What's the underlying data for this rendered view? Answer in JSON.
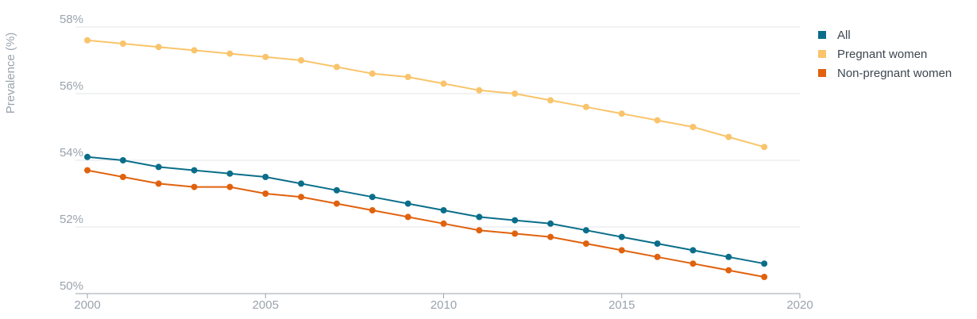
{
  "chart_data": {
    "type": "line",
    "ylabel": "Prevalence (%)",
    "xlabel": "",
    "xlim": [
      2000,
      2020
    ],
    "ylim": [
      50,
      58
    ],
    "x_ticks": [
      "2000",
      "2005",
      "2010",
      "2015",
      "2020"
    ],
    "y_ticks": [
      "50%",
      "52%",
      "54%",
      "56%",
      "58%"
    ],
    "grid": true,
    "legend_position": "top-right",
    "x": [
      2000,
      2001,
      2002,
      2003,
      2004,
      2005,
      2006,
      2007,
      2008,
      2009,
      2010,
      2011,
      2012,
      2013,
      2014,
      2015,
      2016,
      2017,
      2018,
      2019
    ],
    "series": [
      {
        "name": "All",
        "color": "#0a6e8a",
        "values": [
          54.1,
          54.0,
          53.8,
          53.7,
          53.6,
          53.5,
          53.3,
          53.1,
          52.9,
          52.7,
          52.5,
          52.3,
          52.2,
          52.1,
          51.9,
          51.7,
          51.5,
          51.3,
          51.1,
          50.9
        ]
      },
      {
        "name": "Pregnant women",
        "color": "#f9c46b",
        "values": [
          57.6,
          57.5,
          57.4,
          57.3,
          57.2,
          57.1,
          57.0,
          56.8,
          56.6,
          56.5,
          56.3,
          56.1,
          56.0,
          55.8,
          55.6,
          55.4,
          55.2,
          55.0,
          54.7,
          54.4
        ]
      },
      {
        "name": "Non-pregnant women",
        "color": "#e0620e",
        "values": [
          53.7,
          53.5,
          53.3,
          53.2,
          53.2,
          53.0,
          52.9,
          52.7,
          52.5,
          52.3,
          52.1,
          51.9,
          51.8,
          51.7,
          51.5,
          51.3,
          51.1,
          50.9,
          50.7,
          50.5
        ]
      }
    ]
  }
}
